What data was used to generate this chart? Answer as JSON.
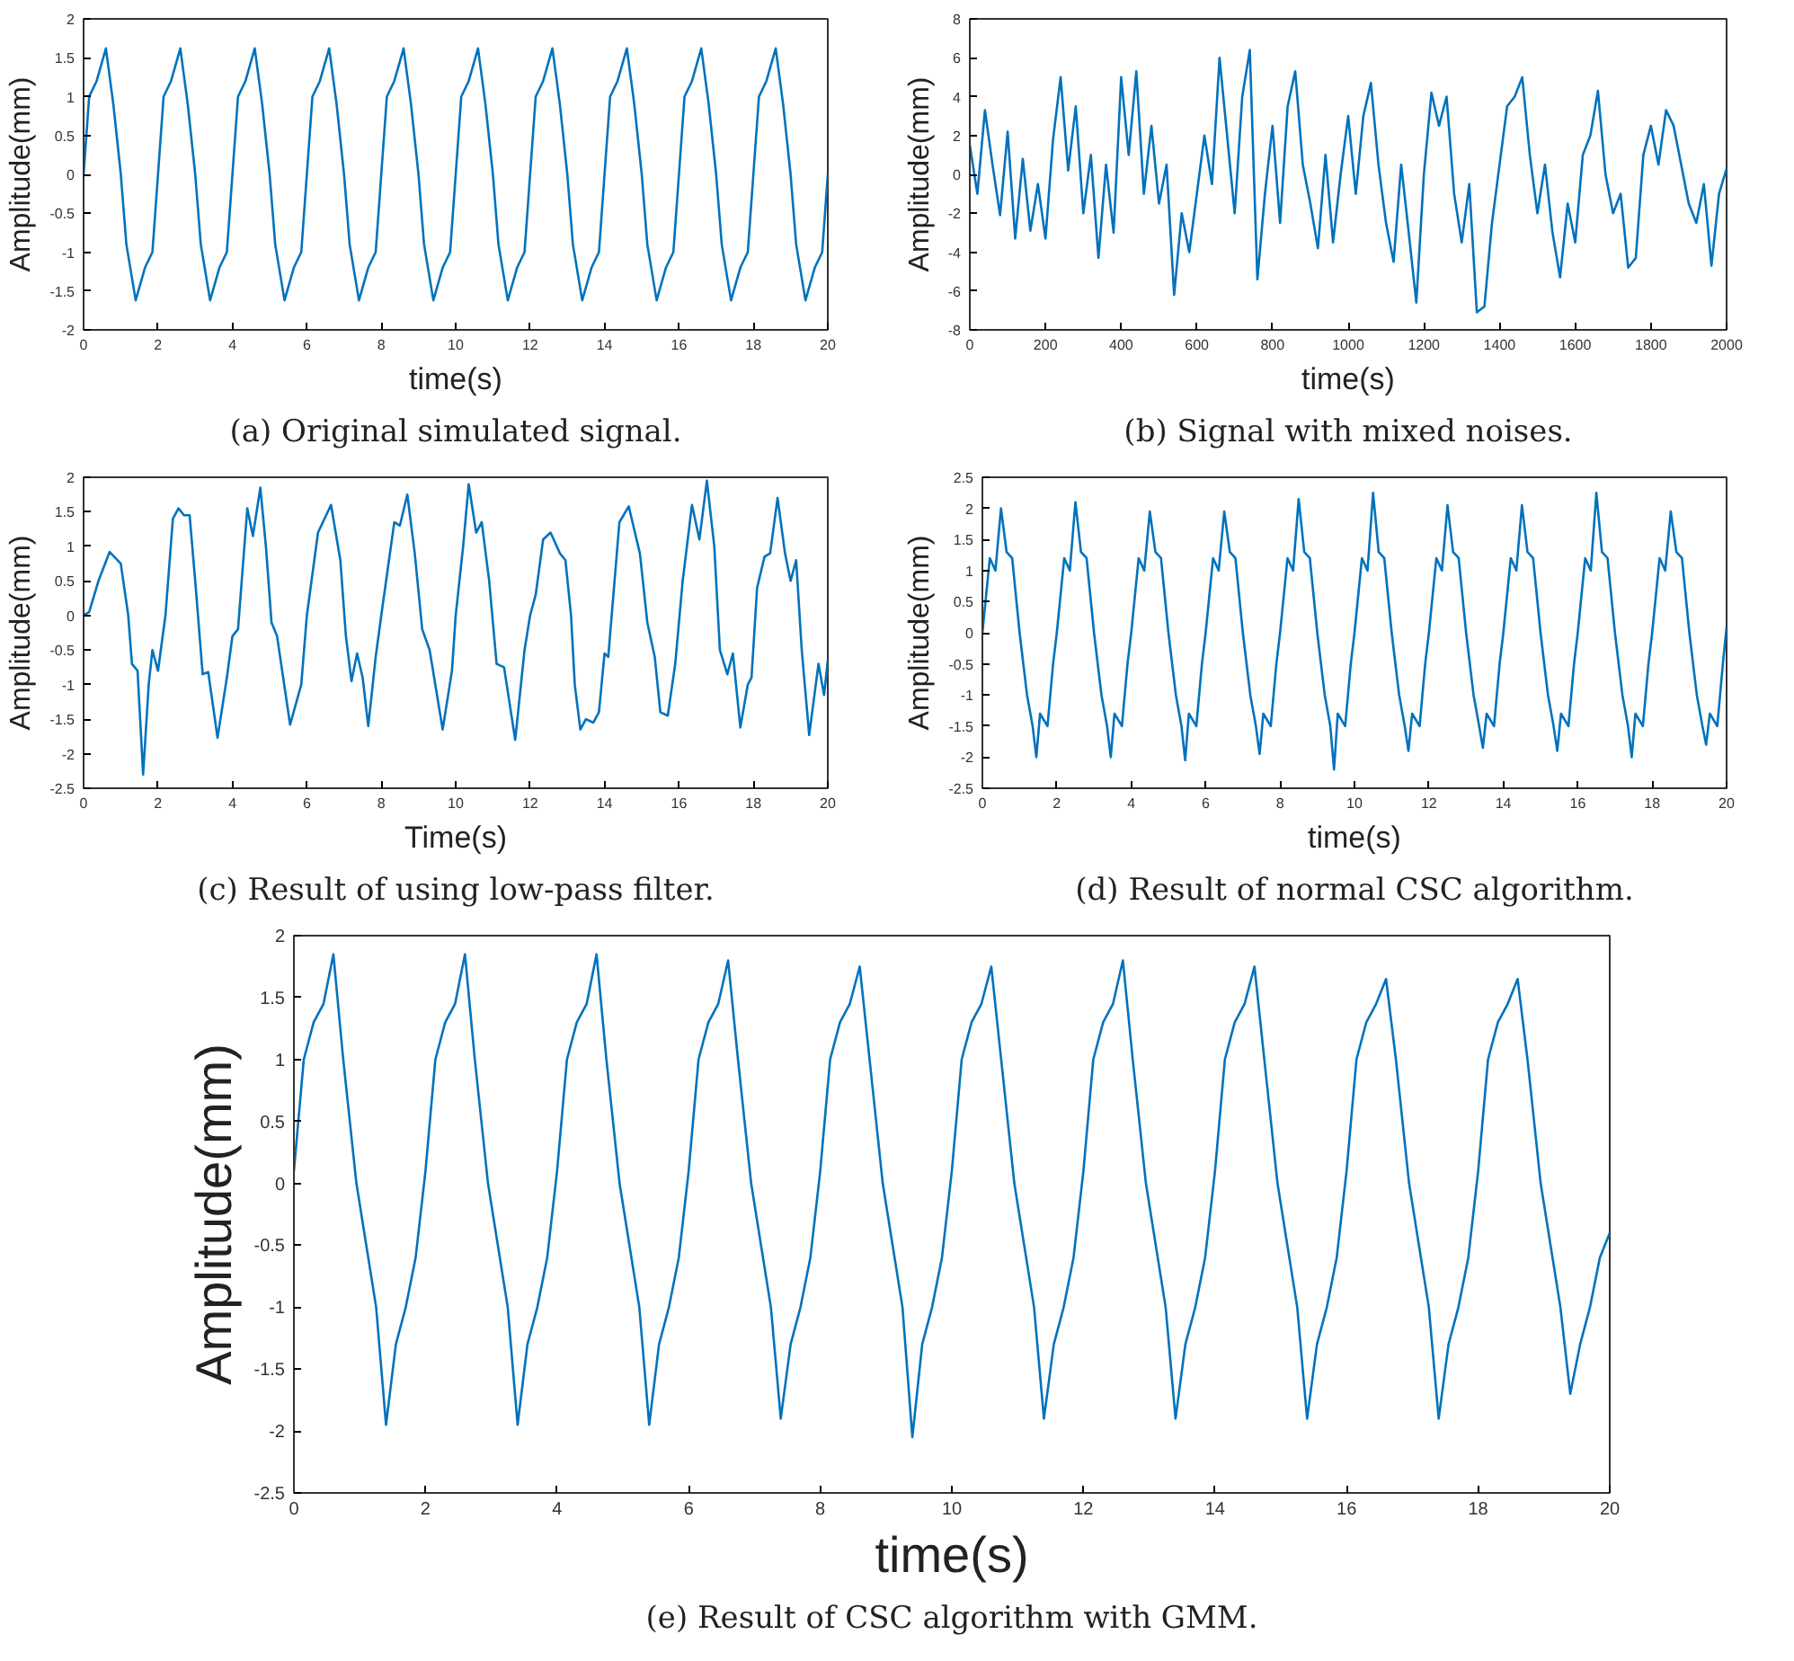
{
  "chart_data": [
    {
      "type": "line",
      "title": "(a) Original simulated signal.",
      "xlabel": "time(s)",
      "ylabel": "Amplitude(mm)",
      "color": "#0072bd",
      "xlim": [
        0,
        20
      ],
      "ylim": [
        -2,
        2
      ],
      "xticks": [
        0,
        2,
        4,
        6,
        8,
        10,
        12,
        14,
        16,
        18,
        20
      ],
      "yticks": [
        -2,
        -1.5,
        -1,
        -0.5,
        0,
        0.5,
        1,
        1.5,
        2
      ],
      "x": [
        0,
        0.15,
        0.35,
        0.6,
        0.8,
        1,
        1.15,
        1.4,
        1.65,
        1.85,
        2,
        2.15,
        2.35,
        2.6,
        2.8,
        3,
        3.15,
        3.4,
        3.65,
        3.85,
        4,
        4.15,
        4.35,
        4.6,
        4.8,
        5,
        5.15,
        5.4,
        5.65,
        5.85,
        6,
        6.15,
        6.35,
        6.6,
        6.8,
        7,
        7.15,
        7.4,
        7.65,
        7.85,
        8,
        8.15,
        8.35,
        8.6,
        8.8,
        9,
        9.15,
        9.4,
        9.65,
        9.85,
        10,
        10.15,
        10.35,
        10.6,
        10.8,
        11,
        11.15,
        11.4,
        11.65,
        11.85,
        12,
        12.15,
        12.35,
        12.6,
        12.8,
        13,
        13.15,
        13.4,
        13.65,
        13.85,
        14,
        14.15,
        14.35,
        14.6,
        14.8,
        15,
        15.15,
        15.4,
        15.65,
        15.85,
        16,
        16.15,
        16.35,
        16.6,
        16.8,
        17,
        17.15,
        17.4,
        17.65,
        17.85,
        18,
        18.15,
        18.35,
        18.6,
        18.8,
        19,
        19.15,
        19.4,
        19.65,
        19.85,
        20
      ],
      "values": [
        0,
        1.0,
        1.2,
        1.62,
        0.9,
        0,
        -0.9,
        -1.62,
        -1.2,
        -1.0,
        0,
        1.0,
        1.2,
        1.62,
        0.9,
        0,
        -0.9,
        -1.62,
        -1.2,
        -1.0,
        0,
        1.0,
        1.2,
        1.62,
        0.9,
        0,
        -0.9,
        -1.62,
        -1.2,
        -1.0,
        0,
        1.0,
        1.2,
        1.62,
        0.9,
        0,
        -0.9,
        -1.62,
        -1.2,
        -1.0,
        0,
        1.0,
        1.2,
        1.62,
        0.9,
        0,
        -0.9,
        -1.62,
        -1.2,
        -1.0,
        0,
        1.0,
        1.2,
        1.62,
        0.9,
        0,
        -0.9,
        -1.62,
        -1.2,
        -1.0,
        0,
        1.0,
        1.2,
        1.62,
        0.9,
        0,
        -0.9,
        -1.62,
        -1.2,
        -1.0,
        0,
        1.0,
        1.2,
        1.62,
        0.9,
        0,
        -0.9,
        -1.62,
        -1.2,
        -1.0,
        0,
        1.0,
        1.2,
        1.62,
        0.9,
        0,
        -0.9,
        -1.62,
        -1.2,
        -1.0,
        0,
        1.0,
        1.2,
        1.62,
        0.9,
        0,
        -0.9,
        -1.62,
        -1.2,
        -1.0,
        0
      ]
    },
    {
      "type": "line",
      "title": "(b) Signal with mixed noises.",
      "xlabel": "time(s)",
      "ylabel": "Amplitude(mm)",
      "color": "#0072bd",
      "xlim": [
        0,
        2000
      ],
      "ylim": [
        -8,
        8
      ],
      "xticks": [
        0,
        200,
        400,
        600,
        800,
        1000,
        1200,
        1400,
        1600,
        1800,
        2000
      ],
      "yticks": [
        -8,
        -6,
        -4,
        -2,
        0,
        2,
        4,
        6,
        8
      ],
      "x": [
        0,
        20,
        40,
        60,
        80,
        100,
        120,
        140,
        160,
        180,
        200,
        220,
        240,
        260,
        280,
        300,
        320,
        340,
        360,
        380,
        400,
        420,
        440,
        460,
        480,
        500,
        520,
        540,
        560,
        580,
        600,
        620,
        640,
        660,
        680,
        700,
        720,
        740,
        760,
        780,
        800,
        820,
        840,
        860,
        880,
        900,
        920,
        940,
        960,
        980,
        1000,
        1020,
        1040,
        1060,
        1080,
        1100,
        1120,
        1140,
        1160,
        1180,
        1200,
        1220,
        1240,
        1260,
        1280,
        1300,
        1320,
        1340,
        1360,
        1380,
        1400,
        1420,
        1440,
        1460,
        1480,
        1500,
        1520,
        1540,
        1560,
        1580,
        1600,
        1620,
        1640,
        1660,
        1680,
        1700,
        1720,
        1740,
        1760,
        1780,
        1800,
        1820,
        1840,
        1860,
        1880,
        1900,
        1920,
        1940,
        1960,
        1980,
        2000
      ],
      "values": [
        1.5,
        -1.0,
        3.3,
        0.5,
        -2.1,
        2.2,
        -3.3,
        0.8,
        -2.9,
        -0.5,
        -3.3,
        1.8,
        5.0,
        0.2,
        3.5,
        -2.0,
        1.0,
        -4.3,
        0.5,
        -3.0,
        5.0,
        1.0,
        5.3,
        -1.0,
        2.5,
        -1.5,
        0.5,
        -6.2,
        -2.0,
        -4.0,
        -1.0,
        2.0,
        -0.5,
        6.0,
        2.0,
        -2.0,
        4.0,
        6.4,
        -5.4,
        -1.0,
        2.5,
        -2.5,
        3.5,
        5.3,
        0.5,
        -1.5,
        -3.8,
        1.0,
        -3.5,
        0.0,
        3.0,
        -1.0,
        3.0,
        4.7,
        0.5,
        -2.5,
        -4.5,
        0.5,
        -3.0,
        -6.6,
        0.0,
        4.2,
        2.5,
        4.0,
        -1.0,
        -3.5,
        -0.5,
        -7.1,
        -6.8,
        -2.5,
        0.5,
        3.5,
        4.0,
        5.0,
        1.0,
        -2.0,
        0.5,
        -3.0,
        -5.3,
        -1.5,
        -3.5,
        1.0,
        2.0,
        4.3,
        0.0,
        -2.0,
        -1.0,
        -4.8,
        -4.3,
        1.0,
        2.5,
        0.5,
        3.3,
        2.5,
        0.5,
        -1.5,
        -2.5,
        -0.5,
        -4.7,
        -1.0,
        0.3
      ]
    },
    {
      "type": "line",
      "title": "(c) Result of using low-pass filter.",
      "xlabel": "Time(s)",
      "ylabel": "Amplitude(mm)",
      "color": "#0072bd",
      "xlim": [
        0,
        20
      ],
      "ylim": [
        -2.5,
        2
      ],
      "xticks": [
        0,
        2,
        4,
        6,
        8,
        10,
        12,
        14,
        16,
        18,
        20
      ],
      "yticks": [
        -2.5,
        -2,
        -1.5,
        -1,
        -0.5,
        0,
        0.5,
        1,
        1.5,
        2
      ],
      "x": [
        0,
        0.15,
        0.4,
        0.7,
        1.0,
        1.2,
        1.3,
        1.45,
        1.6,
        1.75,
        1.85,
        2.0,
        2.2,
        2.4,
        2.55,
        2.7,
        2.85,
        3.0,
        3.2,
        3.35,
        3.6,
        3.85,
        4.0,
        4.15,
        4.4,
        4.55,
        4.75,
        4.9,
        5.05,
        5.2,
        5.55,
        5.85,
        6.0,
        6.3,
        6.65,
        6.9,
        7.05,
        7.2,
        7.35,
        7.5,
        7.65,
        7.85,
        8.0,
        8.35,
        8.5,
        8.7,
        8.9,
        9.1,
        9.3,
        9.65,
        9.9,
        10.0,
        10.2,
        10.35,
        10.55,
        10.7,
        10.9,
        11.1,
        11.3,
        11.6,
        11.85,
        12.0,
        12.15,
        12.35,
        12.55,
        12.8,
        12.95,
        13.1,
        13.2,
        13.35,
        13.5,
        13.7,
        13.85,
        14.0,
        14.1,
        14.4,
        14.65,
        14.95,
        15.15,
        15.35,
        15.5,
        15.7,
        15.9,
        16.1,
        16.35,
        16.55,
        16.75,
        16.95,
        17.1,
        17.3,
        17.45,
        17.65,
        17.85,
        17.95,
        18.1,
        18.3,
        18.45,
        18.65,
        18.85,
        19.0,
        19.15,
        19.3,
        19.5,
        19.75,
        19.9,
        20.0
      ],
      "values": [
        0,
        0.05,
        0.5,
        0.92,
        0.75,
        0.0,
        -0.7,
        -0.8,
        -2.3,
        -1.0,
        -0.5,
        -0.8,
        0.0,
        1.4,
        1.55,
        1.45,
        1.45,
        0.5,
        -0.85,
        -0.82,
        -1.77,
        -0.9,
        -0.3,
        -0.2,
        1.55,
        1.15,
        1.85,
        1.0,
        -0.1,
        -0.3,
        -1.58,
        -1.0,
        0.0,
        1.2,
        1.6,
        0.8,
        -0.3,
        -0.95,
        -0.55,
        -0.9,
        -1.6,
        -0.6,
        0.0,
        1.35,
        1.3,
        1.75,
        0.9,
        -0.2,
        -0.5,
        -1.65,
        -0.8,
        0.0,
        1.0,
        1.9,
        1.2,
        1.35,
        0.5,
        -0.7,
        -0.75,
        -1.8,
        -0.5,
        0.0,
        0.3,
        1.1,
        1.2,
        0.9,
        0.8,
        0.0,
        -1.0,
        -1.65,
        -1.5,
        -1.55,
        -1.4,
        -0.55,
        -0.6,
        1.35,
        1.58,
        0.9,
        -0.1,
        -0.6,
        -1.4,
        -1.45,
        -0.7,
        0.5,
        1.6,
        1.1,
        1.95,
        1.0,
        -0.5,
        -0.85,
        -0.55,
        -1.62,
        -1.0,
        -0.9,
        0.4,
        0.85,
        0.9,
        1.7,
        0.9,
        0.5,
        0.8,
        -0.5,
        -1.73,
        -0.7,
        -1.15,
        -0.65
      ]
    },
    {
      "type": "line",
      "title": "(d) Result of normal CSC algorithm.",
      "xlabel": "time(s)",
      "ylabel": "Amplitude(mm)",
      "color": "#0072bd",
      "xlim": [
        0,
        20
      ],
      "ylim": [
        -2.5,
        2.5
      ],
      "xticks": [
        0,
        2,
        4,
        6,
        8,
        10,
        12,
        14,
        16,
        18,
        20
      ],
      "yticks": [
        -2.5,
        -2,
        -1.5,
        -1,
        -0.5,
        0,
        0.5,
        1,
        1.5,
        2,
        2.5
      ],
      "x": [
        0,
        0.2,
        0.35,
        0.5,
        0.65,
        0.8,
        1.0,
        1.2,
        1.35,
        1.45,
        1.55,
        1.75,
        1.9,
        2,
        2.2,
        2.35,
        2.5,
        2.65,
        2.8,
        3.0,
        3.2,
        3.35,
        3.45,
        3.55,
        3.75,
        3.9,
        4,
        4.2,
        4.35,
        4.5,
        4.65,
        4.8,
        5.0,
        5.2,
        5.35,
        5.45,
        5.55,
        5.75,
        5.9,
        6,
        6.2,
        6.35,
        6.5,
        6.65,
        6.8,
        7.0,
        7.2,
        7.35,
        7.45,
        7.55,
        7.75,
        7.9,
        8,
        8.2,
        8.35,
        8.5,
        8.65,
        8.8,
        9.0,
        9.2,
        9.35,
        9.45,
        9.55,
        9.75,
        9.9,
        10,
        10.2,
        10.35,
        10.5,
        10.65,
        10.8,
        11.0,
        11.2,
        11.35,
        11.45,
        11.55,
        11.75,
        11.9,
        12,
        12.2,
        12.35,
        12.5,
        12.65,
        12.8,
        13.0,
        13.2,
        13.35,
        13.45,
        13.55,
        13.75,
        13.9,
        14,
        14.2,
        14.35,
        14.5,
        14.65,
        14.8,
        15.0,
        15.2,
        15.35,
        15.45,
        15.55,
        15.75,
        15.9,
        16,
        16.2,
        16.35,
        16.5,
        16.65,
        16.8,
        17.0,
        17.2,
        17.35,
        17.45,
        17.55,
        17.75,
        17.9,
        18,
        18.2,
        18.35,
        18.5,
        18.65,
        18.8,
        19.0,
        19.2,
        19.35,
        19.45,
        19.55,
        19.75,
        19.9,
        20
      ],
      "values": [
        0,
        1.2,
        1.0,
        2.0,
        1.3,
        1.2,
        0.0,
        -1.0,
        -1.5,
        -2.0,
        -1.3,
        -1.5,
        -0.5,
        0,
        1.2,
        1.0,
        2.1,
        1.3,
        1.2,
        0.0,
        -1.0,
        -1.5,
        -2.0,
        -1.3,
        -1.5,
        -0.5,
        0,
        1.2,
        1.0,
        1.95,
        1.3,
        1.2,
        0.0,
        -1.0,
        -1.5,
        -2.05,
        -1.3,
        -1.5,
        -0.5,
        0,
        1.2,
        1.0,
        1.95,
        1.3,
        1.2,
        0.0,
        -1.0,
        -1.5,
        -1.95,
        -1.3,
        -1.5,
        -0.5,
        0,
        1.2,
        1.0,
        2.15,
        1.3,
        1.2,
        0.0,
        -1.0,
        -1.5,
        -2.2,
        -1.3,
        -1.5,
        -0.5,
        0,
        1.2,
        1.0,
        2.25,
        1.3,
        1.2,
        0.0,
        -1.0,
        -1.5,
        -1.9,
        -1.3,
        -1.5,
        -0.5,
        0,
        1.2,
        1.0,
        2.05,
        1.3,
        1.2,
        0.0,
        -1.0,
        -1.5,
        -1.85,
        -1.3,
        -1.5,
        -0.5,
        0,
        1.2,
        1.0,
        2.05,
        1.3,
        1.2,
        0.0,
        -1.0,
        -1.5,
        -1.9,
        -1.3,
        -1.5,
        -0.5,
        0,
        1.2,
        1.0,
        2.25,
        1.3,
        1.2,
        0.0,
        -1.0,
        -1.5,
        -2.0,
        -1.3,
        -1.5,
        -0.5,
        0,
        1.2,
        1.0,
        1.95,
        1.3,
        1.2,
        0.0,
        -1.0,
        -1.5,
        -1.8,
        -1.3,
        -1.5,
        -0.5,
        0.1
      ]
    },
    {
      "type": "line",
      "title": "(e) Result of CSC algorithm with GMM.",
      "xlabel": "time(s)",
      "ylabel": "Amplitude(mm)",
      "color": "#0072bd",
      "xlim": [
        0,
        20
      ],
      "ylim": [
        -2.5,
        2
      ],
      "xticks": [
        0,
        2,
        4,
        6,
        8,
        10,
        12,
        14,
        16,
        18,
        20
      ],
      "yticks": [
        -2.5,
        -2,
        -1.5,
        -1,
        -0.5,
        0,
        0.5,
        1,
        1.5,
        2
      ],
      "x": [
        0,
        0.15,
        0.3,
        0.45,
        0.6,
        0.75,
        0.95,
        1.1,
        1.25,
        1.4,
        1.55,
        1.7,
        1.85,
        2,
        2.15,
        2.3,
        2.45,
        2.6,
        2.75,
        2.95,
        3.1,
        3.25,
        3.4,
        3.55,
        3.7,
        3.85,
        4,
        4.15,
        4.3,
        4.45,
        4.6,
        4.75,
        4.95,
        5.1,
        5.25,
        5.4,
        5.55,
        5.7,
        5.85,
        6,
        6.15,
        6.3,
        6.45,
        6.6,
        6.75,
        6.95,
        7.1,
        7.25,
        7.4,
        7.55,
        7.7,
        7.85,
        8,
        8.15,
        8.3,
        8.45,
        8.6,
        8.75,
        8.95,
        9.1,
        9.25,
        9.4,
        9.55,
        9.7,
        9.85,
        10,
        10.15,
        10.3,
        10.45,
        10.6,
        10.75,
        10.95,
        11.1,
        11.25,
        11.4,
        11.55,
        11.7,
        11.85,
        12,
        12.15,
        12.3,
        12.45,
        12.6,
        12.75,
        12.95,
        13.1,
        13.25,
        13.4,
        13.55,
        13.7,
        13.85,
        14,
        14.15,
        14.3,
        14.45,
        14.6,
        14.75,
        14.95,
        15.1,
        15.25,
        15.4,
        15.55,
        15.7,
        15.85,
        16,
        16.15,
        16.3,
        16.45,
        16.6,
        16.75,
        16.95,
        17.1,
        17.25,
        17.4,
        17.55,
        17.7,
        17.85,
        18,
        18.15,
        18.3,
        18.45,
        18.6,
        18.75,
        18.95,
        19.1,
        19.25,
        19.4,
        19.55,
        19.7,
        19.85,
        20
      ],
      "values": [
        0.1,
        1.0,
        1.3,
        1.45,
        1.85,
        1.0,
        0.0,
        -0.5,
        -1.0,
        -1.95,
        -1.3,
        -1.0,
        -0.6,
        0.1,
        1.0,
        1.3,
        1.45,
        1.85,
        1.0,
        0.0,
        -0.5,
        -1.0,
        -1.95,
        -1.3,
        -1.0,
        -0.6,
        0.1,
        1.0,
        1.3,
        1.45,
        1.85,
        1.0,
        0.0,
        -0.5,
        -1.0,
        -1.95,
        -1.3,
        -1.0,
        -0.6,
        0.1,
        1.0,
        1.3,
        1.45,
        1.8,
        1.0,
        0.0,
        -0.5,
        -1.0,
        -1.9,
        -1.3,
        -1.0,
        -0.6,
        0.1,
        1.0,
        1.3,
        1.45,
        1.75,
        1.0,
        0.0,
        -0.5,
        -1.0,
        -2.05,
        -1.3,
        -1.0,
        -0.6,
        0.1,
        1.0,
        1.3,
        1.45,
        1.75,
        1.0,
        0.0,
        -0.5,
        -1.0,
        -1.9,
        -1.3,
        -1.0,
        -0.6,
        0.1,
        1.0,
        1.3,
        1.45,
        1.8,
        1.0,
        0.0,
        -0.5,
        -1.0,
        -1.9,
        -1.3,
        -1.0,
        -0.6,
        0.1,
        1.0,
        1.3,
        1.45,
        1.75,
        1.0,
        0.0,
        -0.5,
        -1.0,
        -1.9,
        -1.3,
        -1.0,
        -0.6,
        0.1,
        1.0,
        1.3,
        1.45,
        1.65,
        1.0,
        0.0,
        -0.5,
        -1.0,
        -1.9,
        -1.3,
        -1.0,
        -0.6,
        0.1,
        1.0,
        1.3,
        1.45,
        1.65,
        1.0,
        0.0,
        -0.5,
        -1.0,
        -1.7,
        -1.3,
        -1.0,
        -0.6,
        -0.4
      ]
    }
  ]
}
